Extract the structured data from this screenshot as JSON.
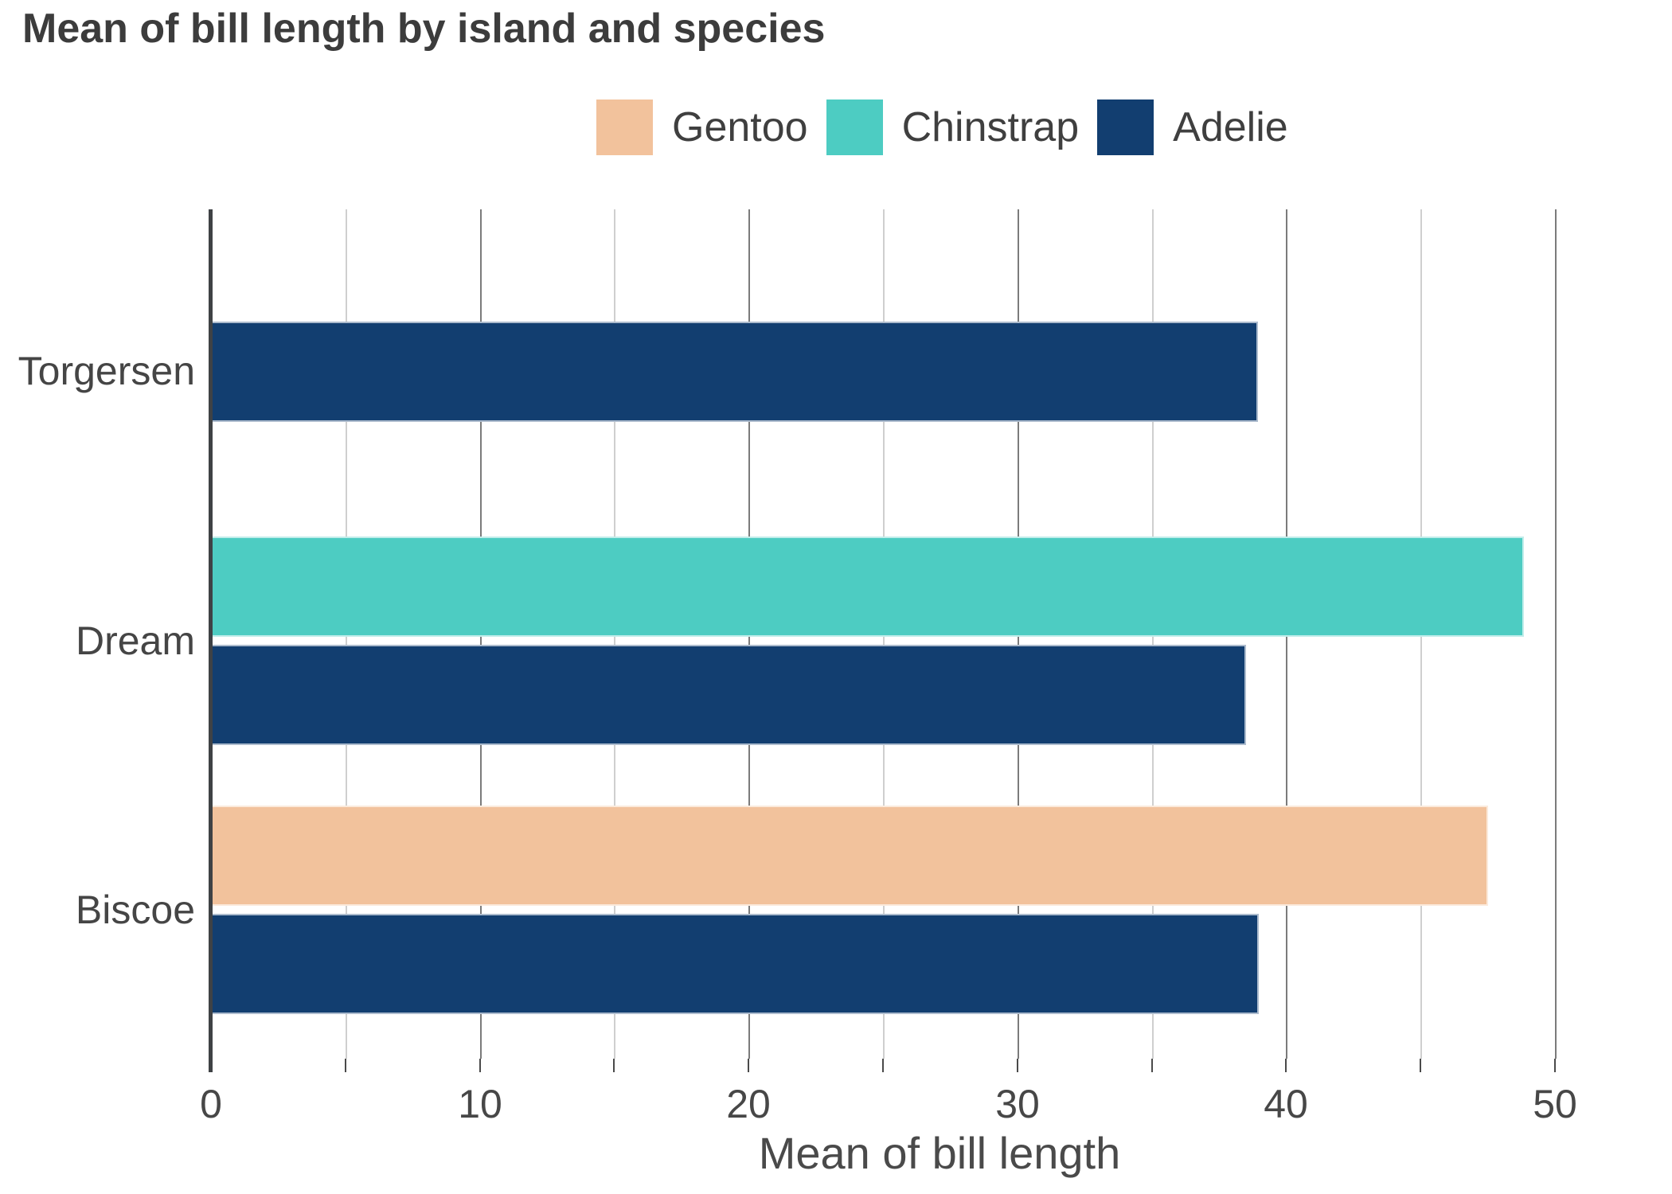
{
  "chart_data": {
    "type": "bar",
    "orientation": "horizontal",
    "title": "Mean of bill length by island and species",
    "xlabel": "Mean of bill length",
    "categories": [
      "Torgersen",
      "Dream",
      "Biscoe"
    ],
    "series": [
      {
        "name": "Gentoo",
        "color": "#F2C29C",
        "values": [
          null,
          null,
          47.5
        ]
      },
      {
        "name": "Chinstrap",
        "color": "#4DCCC2",
        "values": [
          null,
          48.83,
          null
        ]
      },
      {
        "name": "Adelie",
        "color": "#123E70",
        "values": [
          38.95,
          38.5,
          38.98
        ]
      }
    ],
    "xlim": [
      0,
      50
    ],
    "xticks": [
      0,
      10,
      20,
      30,
      40,
      50
    ],
    "minor_tick_step": 5,
    "grid": "vertical",
    "legend_position": "top-center"
  }
}
